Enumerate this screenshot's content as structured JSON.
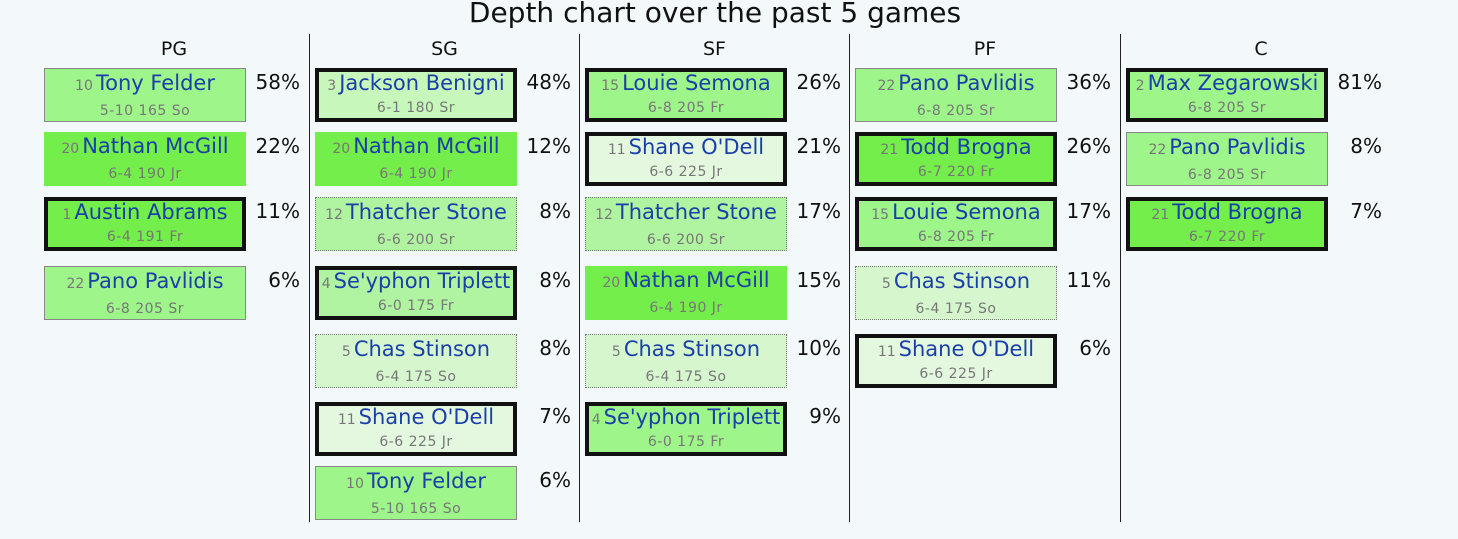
{
  "title": "Depth chart over the past 5 games",
  "positions": [
    {
      "label": "PG",
      "players": [
        {
          "number": "10",
          "name": "Tony Felder",
          "info": "5-10 165 So",
          "pct": "58%",
          "color": "#9ef58a",
          "border": "thin"
        },
        {
          "number": "20",
          "name": "Nathan McGill",
          "info": "6-4 190 Jr",
          "pct": "22%",
          "color": "#73ee4a",
          "border": "none"
        },
        {
          "number": "1",
          "name": "Austin Abrams",
          "info": "6-4 191 Fr",
          "pct": "11%",
          "color": "#73ee4a",
          "border": "thick"
        },
        {
          "number": "22",
          "name": "Pano Pavlidis",
          "info": "6-8 205 Sr",
          "pct": "6%",
          "color": "#9ef58a",
          "border": "thin"
        }
      ]
    },
    {
      "label": "SG",
      "players": [
        {
          "number": "3",
          "name": "Jackson Benigni",
          "info": "6-1 180 Sr",
          "pct": "48%",
          "color": "#c8f7bb",
          "border": "thick"
        },
        {
          "number": "20",
          "name": "Nathan McGill",
          "info": "6-4 190 Jr",
          "pct": "12%",
          "color": "#73ee4a",
          "border": "none"
        },
        {
          "number": "12",
          "name": "Thatcher Stone",
          "info": "6-6 200 Sr",
          "pct": "8%",
          "color": "#b0f3a0",
          "border": "dot"
        },
        {
          "number": "4",
          "name": "Se'yphon Triplett",
          "info": "6-0 175 Fr",
          "pct": "8%",
          "color": "#b0f3a0",
          "border": "thick"
        },
        {
          "number": "5",
          "name": "Chas Stinson",
          "info": "6-4 175 So",
          "pct": "8%",
          "color": "#d6f7ce",
          "border": "dot"
        },
        {
          "number": "11",
          "name": "Shane O'Dell",
          "info": "6-6 225 Jr",
          "pct": "7%",
          "color": "#e4f8e0",
          "border": "thick"
        },
        {
          "number": "10",
          "name": "Tony Felder",
          "info": "5-10 165 So",
          "pct": "6%",
          "color": "#9ef58a",
          "border": "thin"
        }
      ]
    },
    {
      "label": "SF",
      "players": [
        {
          "number": "15",
          "name": "Louie Semona",
          "info": "6-8 205 Fr",
          "pct": "26%",
          "color": "#9ef58a",
          "border": "thick"
        },
        {
          "number": "11",
          "name": "Shane O'Dell",
          "info": "6-6 225 Jr",
          "pct": "21%",
          "color": "#e4f8e0",
          "border": "thick"
        },
        {
          "number": "12",
          "name": "Thatcher Stone",
          "info": "6-6 200 Sr",
          "pct": "17%",
          "color": "#b0f3a0",
          "border": "dot"
        },
        {
          "number": "20",
          "name": "Nathan McGill",
          "info": "6-4 190 Jr",
          "pct": "15%",
          "color": "#73ee4a",
          "border": "none"
        },
        {
          "number": "5",
          "name": "Chas Stinson",
          "info": "6-4 175 So",
          "pct": "10%",
          "color": "#d6f7ce",
          "border": "dot"
        },
        {
          "number": "4",
          "name": "Se'yphon Triplett",
          "info": "6-0 175 Fr",
          "pct": "9%",
          "color": "#9ef58a",
          "border": "thick"
        }
      ]
    },
    {
      "label": "PF",
      "players": [
        {
          "number": "22",
          "name": "Pano Pavlidis",
          "info": "6-8 205 Sr",
          "pct": "36%",
          "color": "#9ef58a",
          "border": "thin"
        },
        {
          "number": "21",
          "name": "Todd Brogna",
          "info": "6-7 220 Fr",
          "pct": "26%",
          "color": "#73ee4a",
          "border": "thick"
        },
        {
          "number": "15",
          "name": "Louie Semona",
          "info": "6-8 205 Fr",
          "pct": "17%",
          "color": "#9ef58a",
          "border": "thick"
        },
        {
          "number": "5",
          "name": "Chas Stinson",
          "info": "6-4 175 So",
          "pct": "11%",
          "color": "#d6f7ce",
          "border": "dot"
        },
        {
          "number": "11",
          "name": "Shane O'Dell",
          "info": "6-6 225 Jr",
          "pct": "6%",
          "color": "#e4f8e0",
          "border": "thick"
        }
      ]
    },
    {
      "label": "C",
      "players": [
        {
          "number": "2",
          "name": "Max Zegarowski",
          "info": "6-8 205 Sr",
          "pct": "81%",
          "color": "#9ef58a",
          "border": "thick"
        },
        {
          "number": "22",
          "name": "Pano Pavlidis",
          "info": "6-8 205 Sr",
          "pct": "8%",
          "color": "#9ef58a",
          "border": "thin"
        },
        {
          "number": "21",
          "name": "Todd Brogna",
          "info": "6-7 220 Fr",
          "pct": "7%",
          "color": "#73ee4a",
          "border": "thick"
        }
      ]
    }
  ]
}
